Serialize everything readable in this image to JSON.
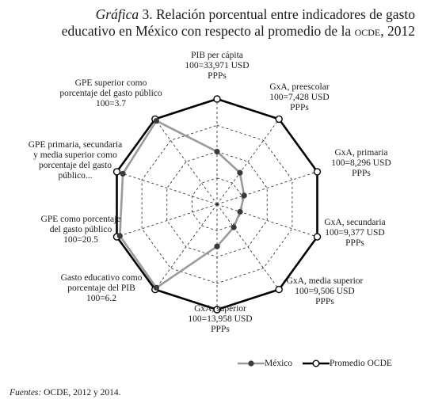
{
  "title": {
    "graph_label": "Gráfica",
    "graph_number": "3.",
    "line1": "Relación porcentual entre indicadores de gasto",
    "line2_main": "educativo en México con respecto al promedio de la",
    "line2_org": "ocde",
    "line2_year": ", 2012"
  },
  "legend": {
    "mexico": "México",
    "ocde": "Promedio OCDE"
  },
  "source": {
    "label": "Fuentes:",
    "text": "OCDE, 2012 y 2014."
  },
  "colors": {
    "mexico_line": "#9a9a9a",
    "mexico_marker": "#3a3a3a",
    "ocde_line": "#000000",
    "grid": "#222222"
  },
  "chart_data": {
    "type": "radar",
    "title": "Relación porcentual entre indicadores de gasto educativo en México con respecto al promedio de la OCDE, 2012",
    "grid": true,
    "legend_position": "bottom-right",
    "axes": [
      {
        "label": [
          "PIB per cápita",
          "100=33,971 USD",
          "PPPs"
        ]
      },
      {
        "label": [
          "GxA, preescolar",
          "100=7,428 USD",
          "PPPs"
        ]
      },
      {
        "label": [
          "GxA, primaria",
          "100=8,296 USD",
          "PPPs"
        ]
      },
      {
        "label": [
          "GxA, secundaria",
          "100=9,377 USD",
          "PPPs"
        ]
      },
      {
        "label": [
          "GxA, media superior",
          "100=9,506 USD",
          "PPPs"
        ]
      },
      {
        "label": [
          "GxA, superior",
          "100=13,958 USD",
          "PPPs"
        ]
      },
      {
        "label": [
          "Gasto educativo como",
          "porcentaje del PIB",
          "100=6.2"
        ]
      },
      {
        "label": [
          "GPE como porcentaje",
          "del gasto público",
          "100=20.5"
        ]
      },
      {
        "label": [
          "GPE primaria, secundaria",
          "y media superior como",
          "porcentaje del gasto",
          "público..."
        ]
      },
      {
        "label": [
          "GPE superior como",
          "porcentaje del gasto público",
          "100=3.7"
        ]
      }
    ],
    "series": [
      {
        "name": "México",
        "values": [
          50,
          37,
          27,
          23,
          27,
          40,
          98,
          97,
          94,
          98
        ]
      },
      {
        "name": "Promedio OCDE",
        "values": [
          100,
          100,
          100,
          100,
          100,
          100,
          100,
          100,
          100,
          100
        ]
      }
    ],
    "range": [
      0,
      100
    ]
  }
}
